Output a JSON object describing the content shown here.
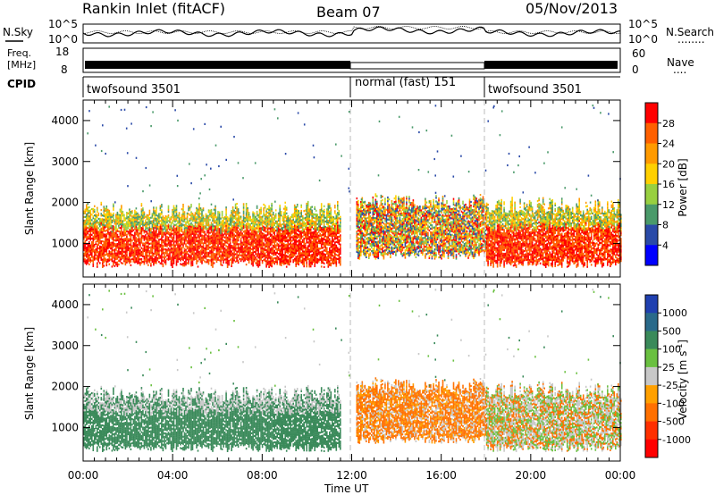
{
  "header": {
    "station": "Rankin Inlet (fitACF)",
    "beam": "Beam 07",
    "date": "05/Nov/2013"
  },
  "strip": {
    "nsky_label": "N.Sky",
    "nsearch_label": "N.Search",
    "dots": "........",
    "nave_label": "Nave",
    "nave_dots": "....",
    "freq_label": "Freq.",
    "mhz_label": "[MHz]",
    "cpid_label": "CPID",
    "noise_ticks": [
      "10^5",
      "10^0"
    ],
    "freq_ticks": [
      "18",
      "8"
    ],
    "nave_ticks": [
      "60",
      "0"
    ],
    "cpid_segments": [
      {
        "label": "twofsound 3501",
        "start_h": 0,
        "end_h": 12
      },
      {
        "label": "normal (fast) 151",
        "start_h": 12,
        "end_h": 18
      },
      {
        "label": "twofsound 3501",
        "start_h": 18,
        "end_h": 24
      }
    ]
  },
  "chart_data": [
    {
      "type": "heatmap",
      "name": "power",
      "ylabel": "Slant Range [km]",
      "ylim": [
        180,
        4500
      ],
      "xlim_h": [
        0,
        24
      ],
      "ytick_labels": [
        "1000",
        "2000",
        "3000",
        "4000"
      ],
      "ytick_values": [
        1000,
        2000,
        3000,
        4000
      ],
      "colorbar_label": "Power [dB]",
      "colorbar_ticks": [
        "28",
        "24",
        "20",
        "16",
        "12",
        "8",
        "4"
      ],
      "colorbar_colors": [
        "#ff0000",
        "#ff6000",
        "#ff9a00",
        "#ffd000",
        "#98d040",
        "#4a9a6a",
        "#2a4aa8",
        "#0000ff"
      ],
      "echo_bands": [
        {
          "start_h": 0,
          "end_h": 11.5,
          "low_km": 400,
          "high_km": 2000,
          "level": "high"
        },
        {
          "start_h": 12.2,
          "end_h": 18,
          "low_km": 600,
          "high_km": 2200,
          "level": "mixed"
        },
        {
          "start_h": 18,
          "end_h": 24,
          "low_km": 400,
          "high_km": 2100,
          "level": "high"
        }
      ]
    },
    {
      "type": "heatmap",
      "name": "velocity",
      "ylabel": "Slant Range [km]",
      "xlabel": "Time UT",
      "ylim": [
        180,
        4500
      ],
      "xlim_h": [
        0,
        24
      ],
      "ytick_labels": [
        "1000",
        "2000",
        "3000",
        "4000"
      ],
      "ytick_values": [
        1000,
        2000,
        3000,
        4000
      ],
      "xtick_labels": [
        "00:00",
        "04:00",
        "08:00",
        "12:00",
        "16:00",
        "20:00",
        "00:00"
      ],
      "xtick_values_h": [
        0,
        4,
        8,
        12,
        16,
        20,
        24
      ],
      "colorbar_label": "Velocity [m s",
      "colorbar_sup": "-1",
      "colorbar_close": "]",
      "colorbar_ticks": [
        "1000",
        "500",
        "100",
        "25",
        "-25",
        "-100",
        "-500",
        "-1000"
      ],
      "colorbar_colors": [
        "#2040b0",
        "#2a6a8a",
        "#3a8a5a",
        "#6ac040",
        "#c8c8c8",
        "#ffa000",
        "#ff7000",
        "#ff3000",
        "#ff0000"
      ]
    }
  ]
}
